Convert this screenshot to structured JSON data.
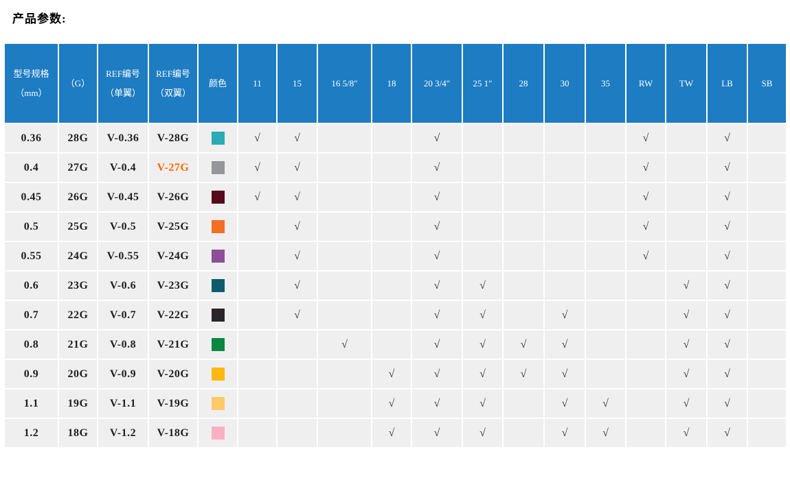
{
  "page": {
    "title": "产品参数:"
  },
  "colors": {
    "header_bg": "#1d7cc2",
    "row_bg": "#efefef",
    "grid_line": "#ffffff",
    "header_text": "#ffffff",
    "body_text": "#1f1f1f",
    "check_color": "#333333",
    "highlight_color": "#ff6600"
  },
  "table": {
    "check_glyph": "√",
    "info_columns": [
      {
        "id": "spec",
        "label": "型号规格\n（mm）"
      },
      {
        "id": "gauge",
        "label": "（G）"
      },
      {
        "id": "ref_single",
        "label": "REF编号\n（单翼）"
      },
      {
        "id": "ref_double",
        "label": "REF编号\n（双翼）"
      },
      {
        "id": "color",
        "label": "颜色"
      }
    ],
    "size_columns": [
      {
        "id": "s11",
        "label": "11"
      },
      {
        "id": "s15",
        "label": "15"
      },
      {
        "id": "s16",
        "label": "16 5/8″"
      },
      {
        "id": "s18",
        "label": "18"
      },
      {
        "id": "s20",
        "label": "20 3/4″"
      },
      {
        "id": "s25",
        "label": "25 1″"
      },
      {
        "id": "s28",
        "label": "28"
      },
      {
        "id": "s30",
        "label": "30"
      },
      {
        "id": "s35",
        "label": "35"
      },
      {
        "id": "rw",
        "label": "RW"
      },
      {
        "id": "tw",
        "label": "TW"
      },
      {
        "id": "lb",
        "label": "LB"
      },
      {
        "id": "sb",
        "label": "SB"
      }
    ],
    "rows": [
      {
        "spec": "0.36",
        "gauge": "28G",
        "ref_single": "V-0.36",
        "ref_double": "V-28G",
        "ref_double_highlight": false,
        "color": "#2aacb4",
        "checks": [
          1,
          1,
          0,
          0,
          1,
          0,
          0,
          0,
          0,
          1,
          0,
          1,
          0
        ]
      },
      {
        "spec": "0.4",
        "gauge": "27G",
        "ref_single": "V-0.4",
        "ref_double": "V-27G",
        "ref_double_highlight": true,
        "color": "#95969a",
        "checks": [
          1,
          1,
          0,
          0,
          1,
          0,
          0,
          0,
          0,
          1,
          0,
          1,
          0
        ]
      },
      {
        "spec": "0.45",
        "gauge": "26G",
        "ref_single": "V-0.45",
        "ref_double": "V-26G",
        "ref_double_highlight": false,
        "color": "#570a1e",
        "checks": [
          1,
          1,
          0,
          0,
          1,
          0,
          0,
          0,
          0,
          1,
          0,
          1,
          0
        ]
      },
      {
        "spec": "0.5",
        "gauge": "25G",
        "ref_single": "V-0.5",
        "ref_double": "V-25G",
        "ref_double_highlight": false,
        "color": "#f26f24",
        "checks": [
          0,
          1,
          0,
          0,
          1,
          0,
          0,
          0,
          0,
          1,
          0,
          1,
          0
        ]
      },
      {
        "spec": "0.55",
        "gauge": "24G",
        "ref_single": "V-0.55",
        "ref_double": "V-24G",
        "ref_double_highlight": false,
        "color": "#8d4f97",
        "checks": [
          0,
          1,
          0,
          0,
          1,
          0,
          0,
          0,
          0,
          1,
          0,
          1,
          0
        ]
      },
      {
        "spec": "0.6",
        "gauge": "23G",
        "ref_single": "V-0.6",
        "ref_double": "V-23G",
        "ref_double_highlight": false,
        "color": "#0d5b6d",
        "checks": [
          0,
          1,
          0,
          0,
          1,
          1,
          0,
          0,
          0,
          0,
          1,
          1,
          0
        ]
      },
      {
        "spec": "0.7",
        "gauge": "22G",
        "ref_single": "V-0.7",
        "ref_double": "V-22G",
        "ref_double_highlight": false,
        "color": "#2a2428",
        "checks": [
          0,
          1,
          0,
          0,
          1,
          1,
          0,
          1,
          0,
          0,
          1,
          1,
          0
        ]
      },
      {
        "spec": "0.8",
        "gauge": "21G",
        "ref_single": "V-0.8",
        "ref_double": "V-21G",
        "ref_double_highlight": false,
        "color": "#0a8742",
        "checks": [
          0,
          0,
          1,
          0,
          1,
          1,
          1,
          1,
          0,
          0,
          1,
          1,
          0
        ]
      },
      {
        "spec": "0.9",
        "gauge": "20G",
        "ref_single": "V-0.9",
        "ref_double": "V-20G",
        "ref_double_highlight": false,
        "color": "#fcb813",
        "checks": [
          0,
          0,
          0,
          1,
          1,
          1,
          1,
          1,
          0,
          0,
          1,
          1,
          0
        ]
      },
      {
        "spec": "1.1",
        "gauge": "19G",
        "ref_single": "V-1.1",
        "ref_double": "V-19G",
        "ref_double_highlight": false,
        "color": "#ffca67",
        "checks": [
          0,
          0,
          0,
          1,
          1,
          1,
          0,
          1,
          1,
          0,
          1,
          1,
          0
        ]
      },
      {
        "spec": "1.2",
        "gauge": "18G",
        "ref_single": "V-1.2",
        "ref_double": "V-18G",
        "ref_double_highlight": false,
        "color": "#fab0c3",
        "checks": [
          0,
          0,
          0,
          1,
          1,
          1,
          0,
          1,
          1,
          0,
          1,
          1,
          0
        ]
      }
    ]
  }
}
